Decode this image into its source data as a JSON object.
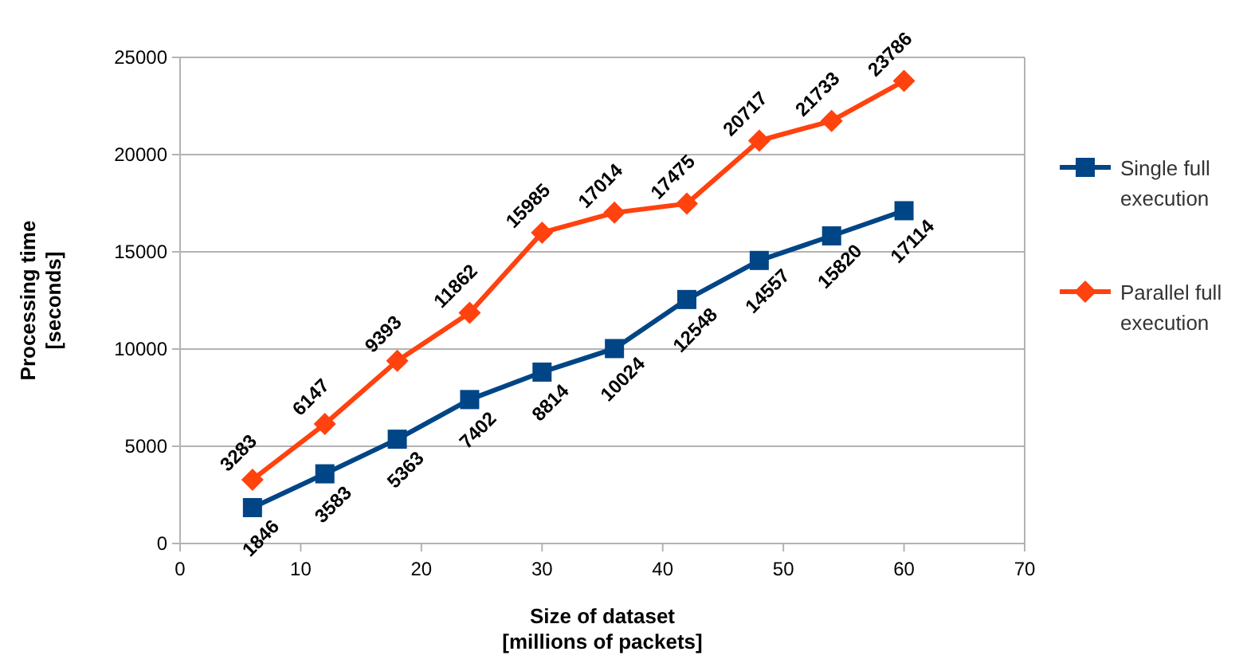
{
  "chart_data": {
    "type": "line",
    "xlabel": "Size of dataset\n[millions of packets]",
    "ylabel": "Processing time\n[seconds]",
    "x": [
      6,
      12,
      18,
      24,
      30,
      36,
      42,
      48,
      54,
      60
    ],
    "series": [
      {
        "name": "Single full execution",
        "color": "#004586",
        "marker": "square",
        "values": [
          1846,
          3583,
          5363,
          7402,
          8814,
          10024,
          12548,
          14557,
          15820,
          17114
        ]
      },
      {
        "name": "Parallel full execution",
        "color": "#ff420e",
        "marker": "diamond",
        "values": [
          3283,
          6147,
          9393,
          11862,
          15985,
          17014,
          17475,
          20717,
          21733,
          23786
        ]
      }
    ],
    "xlim": [
      0,
      70
    ],
    "xticks": [
      0,
      10,
      20,
      30,
      40,
      50,
      60,
      70
    ],
    "ylim": [
      0,
      25000
    ],
    "yticks": [
      0,
      5000,
      10000,
      15000,
      20000,
      25000
    ],
    "grid": "y",
    "legend": "right",
    "data_labels": true
  }
}
